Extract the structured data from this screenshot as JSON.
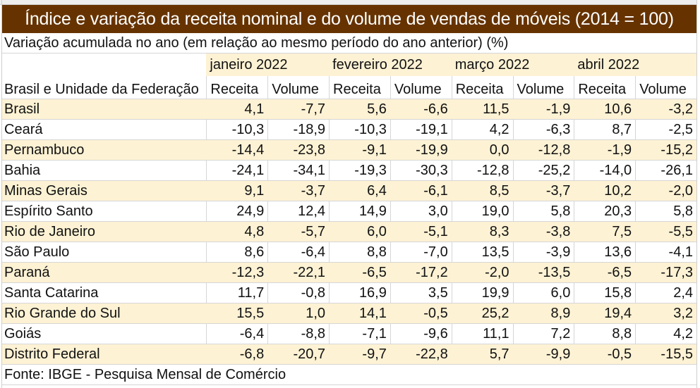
{
  "title": "Índice e variação da receita nominal e do volume de vendas de móveis (2014 = 100)",
  "subtitle": "Variação acumulada no ano (em relação ao mesmo período do ano anterior) (%)",
  "months": [
    "janeiro 2022",
    "fevereiro 2022",
    "março 2022",
    "abril 2022"
  ],
  "row_header_label": "Brasil e Unidade da Federação",
  "column_headers": [
    "Receita",
    "Volume",
    "Receita",
    "Volume",
    "Receita",
    "Volume",
    "Receita",
    "Volume"
  ],
  "rows": [
    {
      "name": "Brasil",
      "values": [
        "4,1",
        "-7,7",
        "5,6",
        "-6,6",
        "11,5",
        "-1,9",
        "10,6",
        "-3,2"
      ]
    },
    {
      "name": "Ceará",
      "values": [
        "-10,3",
        "-18,9",
        "-10,3",
        "-19,1",
        "4,2",
        "-6,3",
        "8,7",
        "-2,5"
      ]
    },
    {
      "name": "Pernambuco",
      "values": [
        "-14,4",
        "-23,8",
        "-9,1",
        "-19,9",
        "0,0",
        "-12,8",
        "-1,9",
        "-15,2"
      ]
    },
    {
      "name": "Bahia",
      "values": [
        "-24,1",
        "-34,1",
        "-19,3",
        "-30,3",
        "-12,8",
        "-25,2",
        "-14,0",
        "-26,1"
      ]
    },
    {
      "name": "Minas Gerais",
      "values": [
        "9,1",
        "-3,7",
        "6,4",
        "-6,1",
        "8,5",
        "-3,7",
        "10,2",
        "-2,0"
      ]
    },
    {
      "name": "Espírito Santo",
      "values": [
        "24,9",
        "12,4",
        "14,9",
        "3,0",
        "19,0",
        "5,8",
        "20,3",
        "5,8"
      ]
    },
    {
      "name": "Rio de Janeiro",
      "values": [
        "4,8",
        "-5,7",
        "6,0",
        "-5,1",
        "8,3",
        "-3,8",
        "7,5",
        "-5,5"
      ]
    },
    {
      "name": "São Paulo",
      "values": [
        "8,6",
        "-6,4",
        "8,8",
        "-7,0",
        "13,5",
        "-3,9",
        "13,6",
        "-4,1"
      ]
    },
    {
      "name": "Paraná",
      "values": [
        "-12,3",
        "-22,1",
        "-6,5",
        "-17,2",
        "-2,0",
        "-13,5",
        "-6,5",
        "-17,3"
      ]
    },
    {
      "name": "Santa Catarina",
      "values": [
        "11,7",
        "-0,8",
        "16,9",
        "3,5",
        "19,9",
        "6,0",
        "15,8",
        "2,4"
      ]
    },
    {
      "name": "Rio Grande do Sul",
      "values": [
        "15,5",
        "1,0",
        "14,1",
        "-0,5",
        "25,2",
        "8,9",
        "19,4",
        "3,2"
      ]
    },
    {
      "name": "Goiás",
      "values": [
        "-6,4",
        "-8,8",
        "-7,1",
        "-9,6",
        "11,1",
        "7,2",
        "8,8",
        "4,2"
      ]
    },
    {
      "name": "Distrito Federal",
      "values": [
        "-6,8",
        "-20,7",
        "-9,7",
        "-22,8",
        "5,7",
        "-9,9",
        "-0,5",
        "-15,5"
      ]
    }
  ],
  "source": "Fonte: IBGE - Pesquisa Mensal de Comércio",
  "colors": {
    "title_bg": "#663300",
    "title_text": "#ffffff",
    "band": "#fdf2d4"
  }
}
